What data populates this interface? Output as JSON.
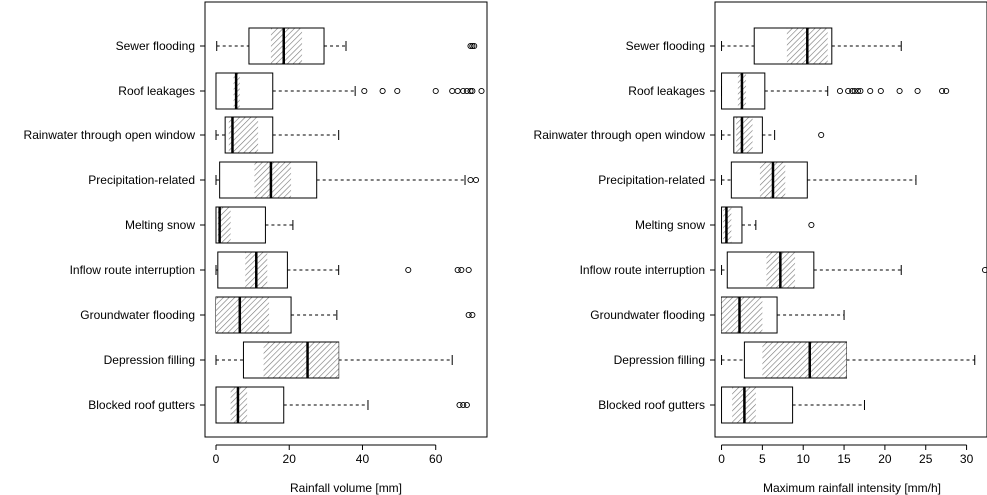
{
  "chart_data": [
    {
      "type": "boxplot",
      "orientation": "horizontal",
      "xlabel": "Rainfall volume [mm]",
      "xlim": [
        -3,
        74
      ],
      "xticks": [
        0,
        20,
        40,
        60
      ],
      "categories": [
        "Sewer flooding",
        "Roof leakages",
        "Rainwater through open window",
        "Precipitation-related",
        "Melting snow",
        "Inflow route interruption",
        "Groundwater flooding",
        "Depression filling",
        "Blocked roof gutters"
      ],
      "boxes": [
        {
          "min": 0.2,
          "q1": 9,
          "median": 18.5,
          "q3": 29.5,
          "max": 35.5,
          "ci": [
            15,
            23.5
          ],
          "outliers": [
            69.5,
            70,
            70.5
          ]
        },
        {
          "min": 0,
          "q1": 0,
          "median": 5.5,
          "q3": 15.5,
          "max": 38,
          "ci": [
            4.8,
            6.5
          ],
          "outliers": [
            40.5,
            45.5,
            49.5,
            60,
            64.5,
            66,
            67.5,
            68.5,
            69.5,
            70,
            72.5
          ]
        },
        {
          "min": 0,
          "q1": 2.5,
          "median": 4.5,
          "q3": 15.5,
          "max": 33.5,
          "ci": [
            3.5,
            11.5
          ],
          "outliers": []
        },
        {
          "min": 0,
          "q1": 1,
          "median": 15,
          "q3": 27.5,
          "max": 68,
          "ci": [
            10.5,
            20.5
          ],
          "outliers": [
            69.5,
            71
          ]
        },
        {
          "min": 0,
          "q1": 0,
          "median": 1,
          "q3": 13.5,
          "max": 21,
          "ci": [
            0.5,
            4
          ],
          "outliers": []
        },
        {
          "min": 0,
          "q1": 0.5,
          "median": 11,
          "q3": 19.5,
          "max": 33.5,
          "ci": [
            8,
            14
          ],
          "outliers": [
            52.5,
            66,
            67,
            69
          ]
        },
        {
          "min": 0,
          "q1": 0,
          "median": 6.5,
          "q3": 20.5,
          "max": 33,
          "ci": [
            0,
            14.5
          ],
          "outliers": [
            69,
            70
          ]
        },
        {
          "min": 0,
          "q1": 7.5,
          "median": 25,
          "q3": 33.5,
          "max": 64.5,
          "ci": [
            13,
            34
          ],
          "outliers": []
        },
        {
          "min": 0,
          "q1": 0,
          "median": 6,
          "q3": 18.5,
          "max": 41.5,
          "ci": [
            4,
            8.5
          ],
          "outliers": [
            66.5,
            67.5,
            68.5
          ]
        }
      ]
    },
    {
      "type": "boxplot",
      "orientation": "horizontal",
      "xlabel": "Maximum rainfall intensity [mm/h]",
      "xlim": [
        -0.8,
        32.5
      ],
      "xticks": [
        0,
        5,
        10,
        15,
        20,
        25,
        30
      ],
      "categories": [
        "Sewer flooding",
        "Roof leakages",
        "Rainwater through open window",
        "Precipitation-related",
        "Melting snow",
        "Inflow route interruption",
        "Groundwater flooding",
        "Depression filling",
        "Blocked roof gutters"
      ],
      "boxes": [
        {
          "min": 0,
          "q1": 4,
          "median": 10.5,
          "q3": 13.5,
          "max": 22,
          "ci": [
            8,
            13
          ],
          "outliers": []
        },
        {
          "min": 0,
          "q1": 0,
          "median": 2.5,
          "q3": 5.3,
          "max": 13,
          "ci": [
            2,
            3
          ],
          "outliers": [
            14.5,
            15.5,
            16,
            16.3,
            16.7,
            17,
            18.2,
            19.5,
            21.8,
            24,
            27,
            27.5
          ]
        },
        {
          "min": 0,
          "q1": 1.5,
          "median": 2.5,
          "q3": 5,
          "max": 6.5,
          "ci": [
            1.8,
            3.8
          ],
          "outliers": [
            12.2
          ]
        },
        {
          "min": 0,
          "q1": 1.2,
          "median": 6.3,
          "q3": 10.5,
          "max": 23.8,
          "ci": [
            4.7,
            7.8
          ],
          "outliers": []
        },
        {
          "min": 0,
          "q1": 0,
          "median": 0.6,
          "q3": 2.5,
          "max": 4.2,
          "ci": [
            0.2,
            1.2
          ],
          "outliers": [
            11
          ]
        },
        {
          "min": 0,
          "q1": 0.7,
          "median": 7.2,
          "q3": 11.3,
          "max": 22,
          "ci": [
            5.5,
            9
          ],
          "outliers": [
            32.5
          ]
        },
        {
          "min": 0,
          "q1": 0,
          "median": 2.2,
          "q3": 6.8,
          "max": 15,
          "ci": [
            0,
            5
          ]
        },
        {
          "min": 0,
          "q1": 2.8,
          "median": 10.8,
          "q3": 15.3,
          "max": 31,
          "ci": [
            5,
            15.3
          ],
          "outliers": []
        },
        {
          "min": 0,
          "q1": 0,
          "median": 2.8,
          "q3": 8.7,
          "max": 17.5,
          "ci": [
            1.3,
            4.2
          ],
          "outliers": []
        }
      ]
    }
  ]
}
